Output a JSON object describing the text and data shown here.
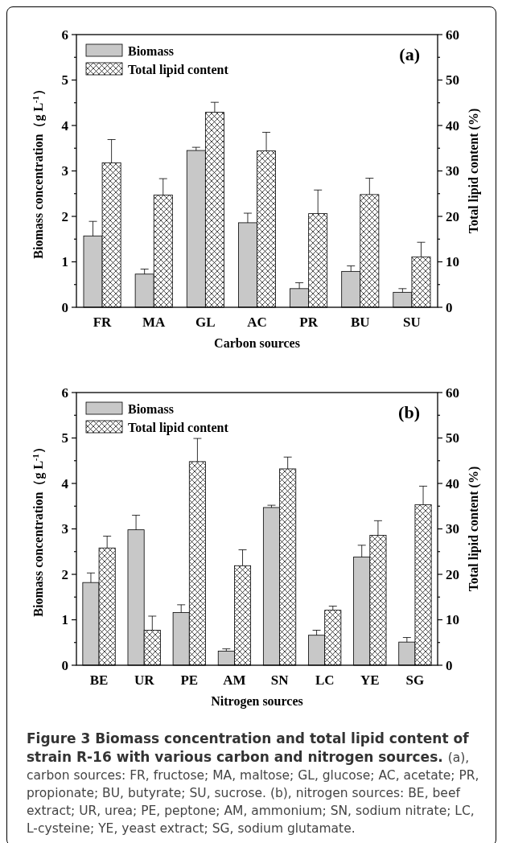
{
  "chart_data": [
    {
      "type": "bar",
      "ylabel": "Biomass concentration（g L$^{-1}$）",
      "y2label": "Total lipid content (%)",
      "xlabel": "Carbon sources",
      "categories": [
        "FR",
        "MA",
        "GL",
        "AC",
        "PR",
        "BU",
        "SU"
      ],
      "series": [
        {
          "name": "Biomass",
          "color": "#c8c8c8",
          "values": [
            1.57,
            0.73,
            3.45,
            1.86,
            0.41,
            0.79,
            0.33
          ],
          "errors": [
            [
              1.57,
              1.89
            ],
            [
              0.73,
              0.84
            ],
            [
              3.45,
              3.52
            ],
            [
              1.86,
              2.07
            ],
            [
              0.41,
              0.54
            ],
            [
              0.79,
              0.91
            ],
            [
              0.33,
              0.41
            ]
          ]
        },
        {
          "name": "Total lipid content",
          "color": "#000000",
          "axis": "y2",
          "values": [
            31.8,
            24.7,
            42.9,
            34.4,
            20.6,
            24.8,
            11.1
          ],
          "errors": [
            [
              31.8,
              36.9
            ],
            [
              24.7,
              28.3
            ],
            [
              42.9,
              45.1
            ],
            [
              34.4,
              38.5
            ],
            [
              20.6,
              25.8
            ],
            [
              24.8,
              28.4
            ],
            [
              11.1,
              14.3
            ]
          ]
        }
      ],
      "ylim": [
        0,
        6
      ],
      "yticks": [
        0,
        {
          "value": 0.5,
          "label": null
        },
        1,
        {
          "value": 1.5,
          "label": null
        },
        2,
        {
          "value": 2.5,
          "label": null
        },
        3,
        {
          "value": 3.5,
          "label": null
        },
        4,
        {
          "value": 4.5,
          "label": null
        },
        5,
        {
          "value": 5.5,
          "label": null
        },
        6
      ],
      "y2lim": [
        0,
        60
      ],
      "y2ticks": [
        0,
        {
          "value": 5,
          "label": null
        },
        10,
        {
          "value": 15,
          "label": null
        },
        20,
        {
          "value": 25,
          "label": null
        },
        30,
        {
          "value": 35,
          "label": null
        },
        40,
        {
          "value": 45,
          "label": null
        },
        50,
        {
          "value": 55,
          "label": null
        },
        60
      ],
      "legend": "top left",
      "annotations": [
        "(a)"
      ]
    },
    {
      "type": "bar",
      "ylabel": "Biomass concentration（g L$^{-1}$）",
      "y2label": "Total lipid content (%)",
      "xlabel": "Nitrogen sources",
      "categories": [
        "BE",
        "UR",
        "PE",
        "AM",
        "SN",
        "LC",
        "YE",
        "SG"
      ],
      "series": [
        {
          "name": "Biomass",
          "color": "#c8c8c8",
          "values": [
            1.82,
            2.98,
            1.16,
            0.31,
            3.47,
            0.66,
            2.38,
            0.51
          ],
          "errors": [
            [
              1.82,
              2.03
            ],
            [
              2.98,
              3.3
            ],
            [
              1.16,
              1.33
            ],
            [
              0.31,
              0.36
            ],
            [
              3.47,
              3.52
            ],
            [
              0.66,
              0.77
            ],
            [
              2.38,
              2.64
            ],
            [
              0.51,
              0.61
            ]
          ]
        },
        {
          "name": "Total lipid content",
          "color": "#000000",
          "axis": "y2",
          "values": [
            25.8,
            7.7,
            44.8,
            21.9,
            43.2,
            12.1,
            28.6,
            35.3
          ],
          "errors": [
            [
              25.8,
              28.4
            ],
            [
              7.7,
              10.8
            ],
            [
              44.8,
              49.9
            ],
            [
              21.9,
              25.4
            ],
            [
              43.2,
              45.8
            ],
            [
              12.1,
              13.0
            ],
            [
              28.6,
              31.8
            ],
            [
              35.3,
              39.4
            ]
          ]
        }
      ],
      "ylim": [
        0,
        6
      ],
      "yticks": [
        0,
        {
          "value": 0.5,
          "label": null
        },
        1,
        {
          "value": 1.5,
          "label": null
        },
        2,
        {
          "value": 2.5,
          "label": null
        },
        3,
        {
          "value": 3.5,
          "label": null
        },
        4,
        {
          "value": 4.5,
          "label": null
        },
        5,
        {
          "value": 5.5,
          "label": null
        },
        6
      ],
      "y2lim": [
        0,
        60
      ],
      "y2ticks": [
        0,
        {
          "value": 5,
          "label": null
        },
        10,
        {
          "value": 15,
          "label": null
        },
        20,
        {
          "value": 25,
          "label": null
        },
        30,
        {
          "value": 35,
          "label": null
        },
        40,
        {
          "value": 45,
          "label": null
        },
        50,
        {
          "value": 55,
          "label": null
        },
        60
      ],
      "legend": "top left",
      "annotations": [
        "(b)",
        "Figure 3 Biomass concentration and total lipid content of strain R-16 with various carbon and nitrogen sources.",
        "(a), carbon sources: FR, fructose; MA, maltose; GL, glucose; AC, acetate; PR, propionate; BU, butyrate; SU, sucrose.",
        "(b), nitrogen sources: BE, beef extract; UR, urea; PE, peptone; AM, ammonium; SN, sodium nitrate; LC, L-cysteine; YE, yeast extract; SG, sodium glutamate."
      ]
    }
  ]
}
